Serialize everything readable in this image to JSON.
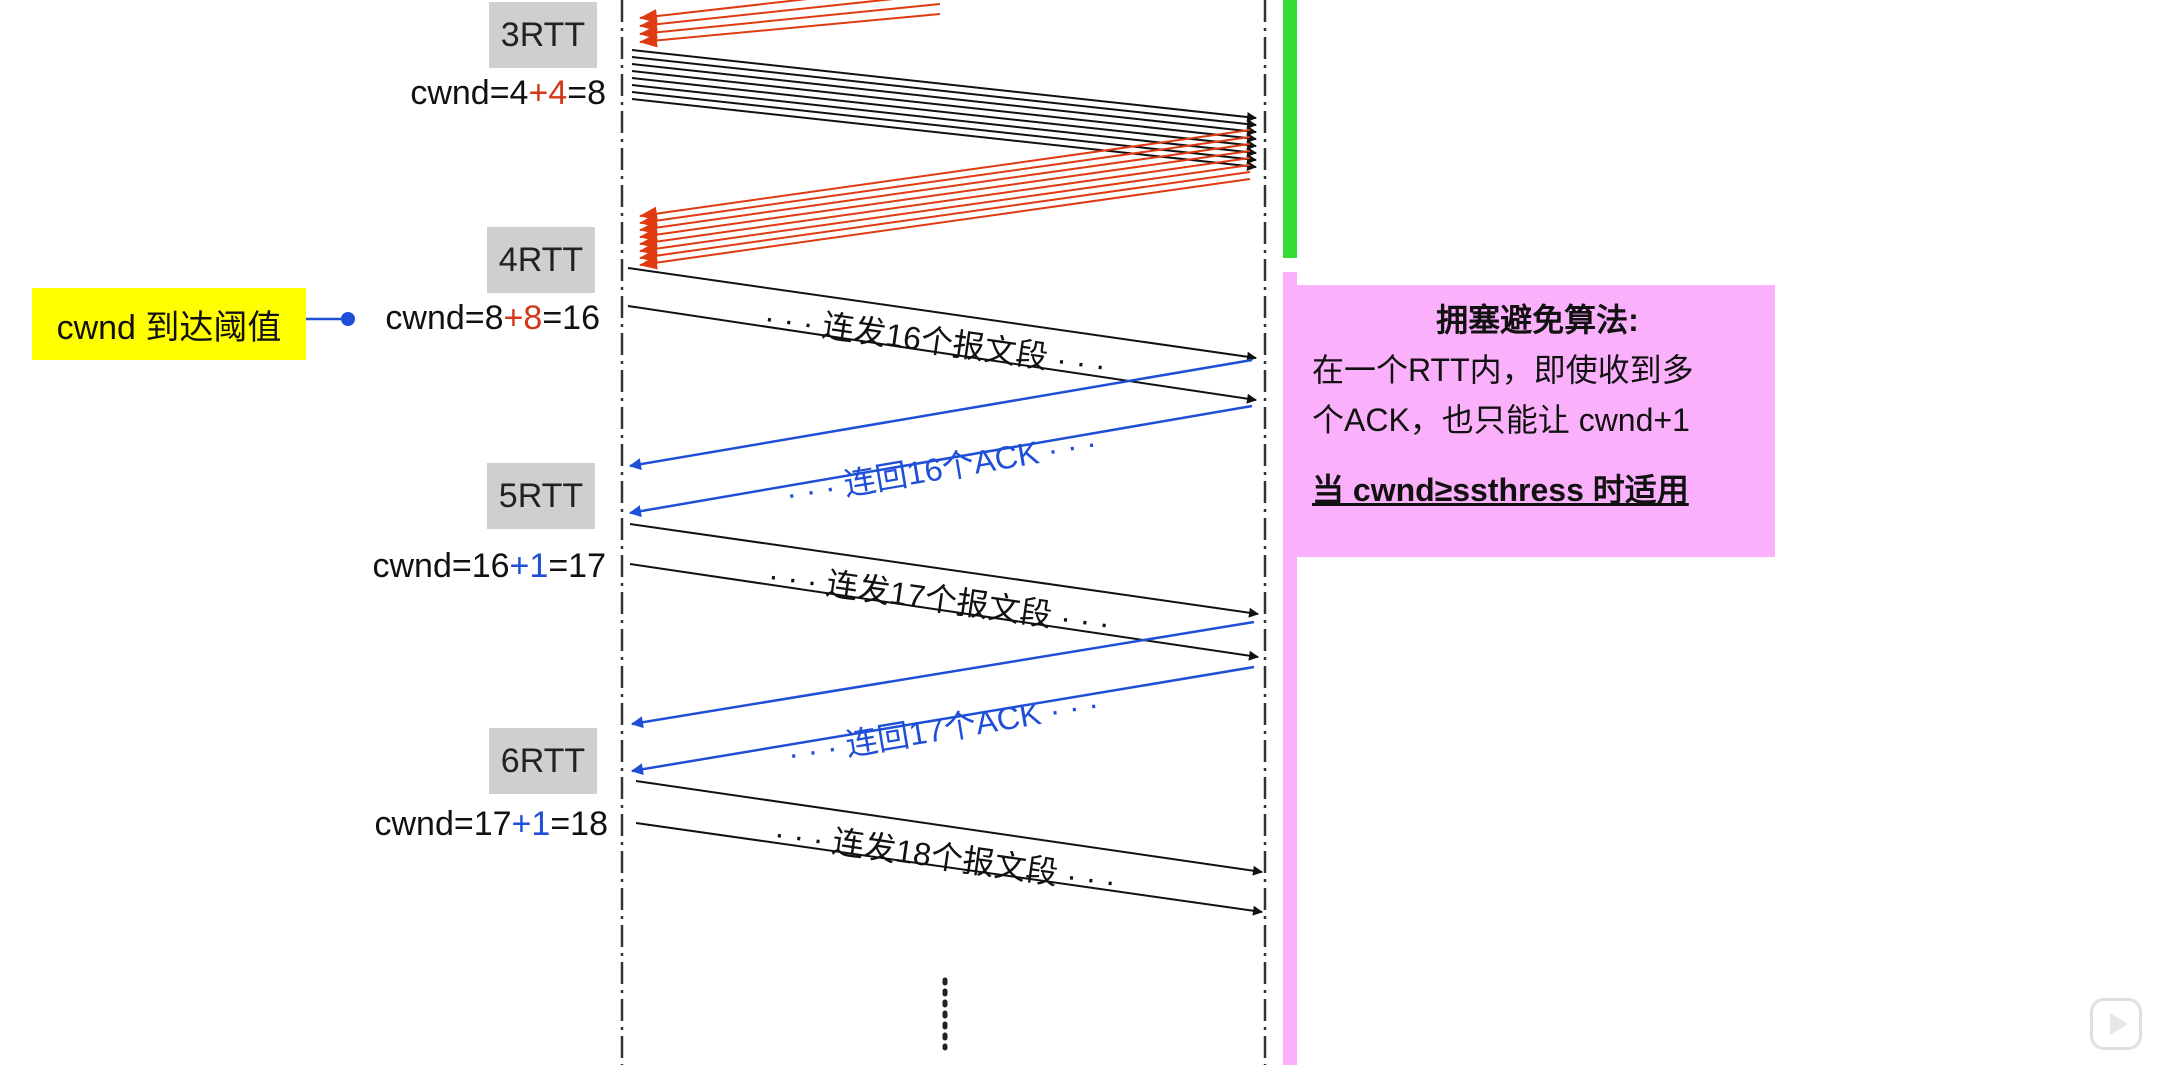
{
  "rounds": [
    {
      "rtt": "3RTT",
      "cwnd_prefix": "cwnd=4",
      "cwnd_op": "+4",
      "cwnd_suffix": "=8"
    },
    {
      "rtt": "4RTT",
      "cwnd_prefix": "cwnd=8",
      "cwnd_op": "+8",
      "cwnd_suffix": "=16"
    },
    {
      "rtt": "5RTT",
      "cwnd_prefix": "cwnd=16",
      "cwnd_op": "+1",
      "cwnd_suffix": "=17"
    },
    {
      "rtt": "6RTT",
      "cwnd_prefix": "cwnd=17",
      "cwnd_op": "+1",
      "cwnd_suffix": "=18"
    }
  ],
  "threshold_tag": "cwnd 到达阈值",
  "arrow_labels": {
    "send16": "· · · 连发16个报文段 · · ·",
    "ack16": "· · · 连回16个ACK · · ·",
    "send17": "· · · 连发17个报文段 · · ·",
    "ack17": "· · · 连回17个ACK · · ·",
    "send18": "· · · 连发18个报文段 · · ·"
  },
  "note": {
    "title": "拥塞避免算法:",
    "line1": "在一个RTT内，即使收到多",
    "line2": "个ACK，也只能让 cwnd+1",
    "condition": "当 cwnd≥ssthress 时适用"
  },
  "colors": {
    "slow_start_ack": "#d2391a",
    "avoid_ack": "#1f4fd6",
    "threshold_tag": "#ffff00",
    "note_bg": "#fbb0fb",
    "slow_start_bar": "#33dd33",
    "avoid_bar": "#fbb0fb"
  }
}
